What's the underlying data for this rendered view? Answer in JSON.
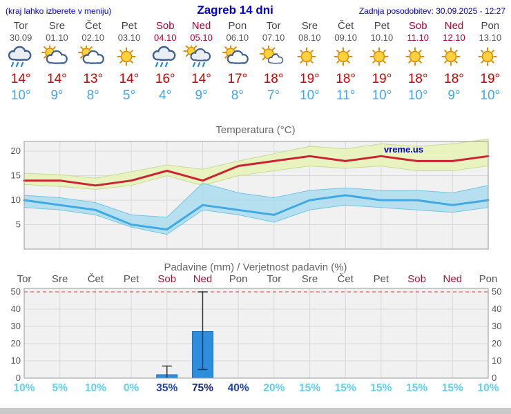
{
  "header": {
    "note": "(kraj lahko izberete v meniju)",
    "title": "Zagreb 14 dni",
    "updated": "Zadnja posodobitev: 30.09.2025 - 12:27"
  },
  "colors": {
    "accent_blue": "#0000cc",
    "temp_max_line": "#cc2233",
    "temp_min_line": "#3fa9e8",
    "temp_max_band": "#e7f2bd",
    "temp_max_band_edge": "#c7dc8f",
    "temp_min_band": "#a7dcf0",
    "temp_min_band_edge": "#6fc6e6",
    "bar_fill": "#2e8ede",
    "bar_edge": "#1b6db3",
    "weekend_text": "#aa1133",
    "weekday_text": "#555555",
    "prob_low": "#5fd0ee",
    "prob_high": "#2244aa",
    "prob_very_high": "#16257e",
    "grid": "#d9d9d9",
    "plot_bg": "#f1f1f1",
    "plot_border": "#9a9a9a",
    "red_dashed": "#ee3333",
    "watermark_blue": "#0000bb"
  },
  "forecast": {
    "days": [
      {
        "name": "Tor",
        "date": "30.09",
        "weekend": false,
        "icon": "rain-cloud",
        "tmax": 14,
        "tmin": 10
      },
      {
        "name": "Sre",
        "date": "01.10",
        "weekend": false,
        "icon": "partly-cloudy",
        "tmax": 14,
        "tmin": 9
      },
      {
        "name": "Čet",
        "date": "02.10",
        "weekend": false,
        "icon": "partly-cloudy",
        "tmax": 13,
        "tmin": 8
      },
      {
        "name": "Pet",
        "date": "03.10",
        "weekend": false,
        "icon": "sunny",
        "tmax": 14,
        "tmin": 5
      },
      {
        "name": "Sob",
        "date": "04.10",
        "weekend": true,
        "icon": "rain-cloud",
        "tmax": 16,
        "tmin": 4
      },
      {
        "name": "Ned",
        "date": "05.10",
        "weekend": true,
        "icon": "rain-sun",
        "tmax": 14,
        "tmin": 9
      },
      {
        "name": "Pon",
        "date": "06.10",
        "weekend": false,
        "icon": "partly-cloudy",
        "tmax": 17,
        "tmin": 8
      },
      {
        "name": "Tor",
        "date": "07.10",
        "weekend": false,
        "icon": "sun-cloud",
        "tmax": 18,
        "tmin": 7
      },
      {
        "name": "Sre",
        "date": "08.10",
        "weekend": false,
        "icon": "sunny",
        "tmax": 19,
        "tmin": 10
      },
      {
        "name": "Čet",
        "date": "09.10",
        "weekend": false,
        "icon": "sunny",
        "tmax": 18,
        "tmin": 11
      },
      {
        "name": "Pet",
        "date": "10.10",
        "weekend": false,
        "icon": "sunny",
        "tmax": 19,
        "tmin": 10
      },
      {
        "name": "Sob",
        "date": "11.10",
        "weekend": true,
        "icon": "sunny",
        "tmax": 18,
        "tmin": 10
      },
      {
        "name": "Ned",
        "date": "12.10",
        "weekend": true,
        "icon": "sunny",
        "tmax": 18,
        "tmin": 9
      },
      {
        "name": "Pon",
        "date": "13.10",
        "weekend": false,
        "icon": "sunny",
        "tmax": 19,
        "tmin": 10
      }
    ]
  },
  "chart_data": [
    {
      "type": "line",
      "title": "Temperatura (°C)",
      "watermark": "vreme.us",
      "categories": [
        "30.09",
        "01.10",
        "02.10",
        "03.10",
        "04.10",
        "05.10",
        "06.10",
        "07.10",
        "08.10",
        "09.10",
        "10.10",
        "11.10",
        "12.10",
        "13.10"
      ],
      "ylim": [
        0,
        22
      ],
      "yticks": [
        5,
        10,
        15,
        20
      ],
      "series": [
        {
          "name": "tmax",
          "values": [
            14,
            14,
            13,
            14,
            16,
            14,
            17,
            18,
            19,
            18,
            19,
            18,
            18,
            19
          ]
        },
        {
          "name": "tmin",
          "values": [
            10,
            9,
            8,
            5,
            4,
            9,
            8,
            7,
            10,
            11,
            10,
            10,
            9,
            10
          ]
        },
        {
          "name": "tmax_band_upper",
          "values": [
            15.5,
            15.2,
            14.5,
            15.8,
            17.2,
            16.3,
            18.0,
            19.5,
            21.0,
            20.5,
            21.5,
            21.0,
            21.5,
            22.5
          ]
        },
        {
          "name": "tmax_band_lower",
          "values": [
            13.2,
            12.8,
            12.2,
            13.0,
            15.0,
            13.0,
            15.0,
            16.0,
            17.0,
            16.5,
            17.0,
            16.0,
            16.0,
            17.0
          ]
        },
        {
          "name": "tmin_band_upper",
          "values": [
            11.0,
            10.5,
            9.5,
            7.0,
            6.5,
            13.5,
            11.5,
            10.5,
            12.0,
            12.5,
            12.0,
            12.0,
            11.5,
            13.0
          ]
        },
        {
          "name": "tmin_band_lower",
          "values": [
            8.5,
            8.0,
            7.0,
            4.5,
            3.0,
            8.0,
            7.0,
            5.5,
            8.0,
            9.0,
            8.5,
            8.0,
            7.5,
            8.5
          ]
        }
      ]
    },
    {
      "type": "bar",
      "title": "Padavine (mm) / Verjetnost padavin (%)",
      "categories": [
        "Tor",
        "Sre",
        "Čet",
        "Pet",
        "Sob",
        "Ned",
        "Pon",
        "Tor",
        "Sre",
        "Čet",
        "Pet",
        "Sob",
        "Ned",
        "Pon"
      ],
      "weekend_flags": [
        false,
        false,
        false,
        false,
        true,
        true,
        false,
        false,
        false,
        false,
        false,
        true,
        true,
        false
      ],
      "ylim": [
        0,
        52
      ],
      "yticks": [
        0,
        10,
        20,
        30,
        40,
        50
      ],
      "values_mm": [
        0,
        0,
        0,
        0,
        2,
        27,
        0,
        0,
        0,
        0,
        0,
        0,
        0,
        0
      ],
      "whiskers": [
        [
          0,
          0
        ],
        [
          0,
          0
        ],
        [
          0,
          0
        ],
        [
          0,
          0
        ],
        [
          0,
          7
        ],
        [
          5,
          50
        ],
        [
          0,
          0
        ],
        [
          0,
          0
        ],
        [
          0,
          0
        ],
        [
          0,
          0
        ],
        [
          0,
          0
        ],
        [
          0,
          0
        ],
        [
          0,
          0
        ],
        [
          0,
          0
        ]
      ],
      "probability_percent": [
        10,
        5,
        10,
        0,
        35,
        75,
        40,
        20,
        15,
        15,
        15,
        15,
        15,
        10
      ]
    }
  ]
}
